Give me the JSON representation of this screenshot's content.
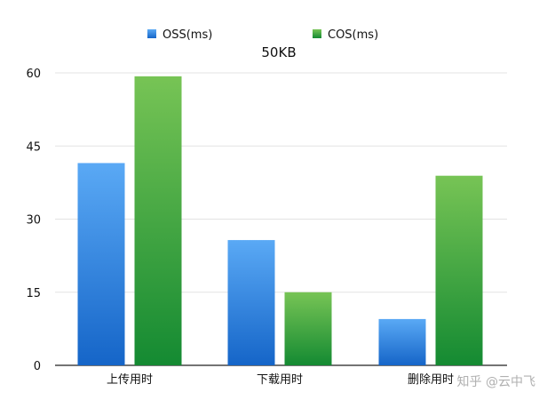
{
  "chart_data": {
    "type": "bar",
    "title": "50KB",
    "categories": [
      "上传用时",
      "下载用时",
      "删除用时"
    ],
    "series": [
      {
        "name": "OSS(ms)",
        "values": [
          41.5,
          25.7,
          9.5
        ],
        "color_top": "#5aa9f5",
        "color_bottom": "#1565c8"
      },
      {
        "name": "COS(ms)",
        "values": [
          59.3,
          15.0,
          38.9
        ],
        "color_top": "#77c455",
        "color_bottom": "#148a32"
      }
    ],
    "ylim": [
      0,
      60
    ],
    "yticks": [
      0,
      15,
      30,
      45,
      60
    ],
    "grid": true,
    "legend": "top",
    "xlabel": "",
    "ylabel": ""
  },
  "watermark": "知乎 @云中飞"
}
